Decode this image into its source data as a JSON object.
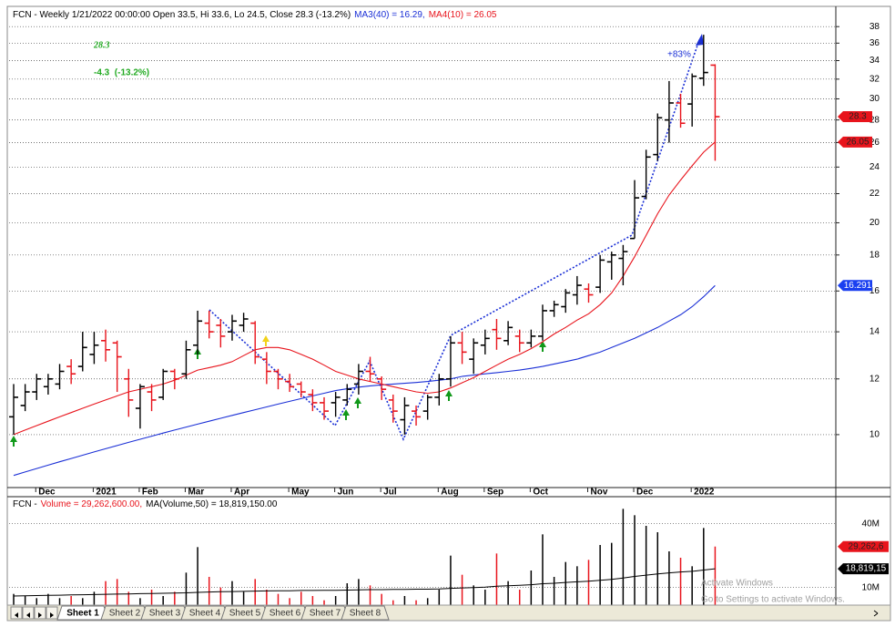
{
  "chart_data": [
    {
      "type": "ohlc",
      "title": "FCN - Weekly 1/21/2022 00:00:00 Open 33.5, Hi 33.6, Lo 24.5, Close 28.3 (-13.2%)",
      "categories": [
        null,
        null,
        "Dec",
        null,
        null,
        null,
        null,
        "2021",
        null,
        null,
        null,
        "Feb",
        null,
        null,
        null,
        "Mar",
        null,
        null,
        null,
        "Apr",
        null,
        null,
        null,
        null,
        "May",
        null,
        null,
        null,
        "Jun",
        null,
        null,
        null,
        "Jul",
        null,
        null,
        null,
        null,
        "Aug",
        null,
        null,
        null,
        "Sep",
        null,
        null,
        null,
        "Oct",
        null,
        null,
        null,
        null,
        "Nov",
        null,
        null,
        null,
        "Dec",
        null,
        null,
        null,
        null,
        "2022",
        null,
        null
      ],
      "open": [
        10.6,
        11.0,
        11.5,
        11.7,
        11.8,
        12.5,
        12.5,
        13.0,
        13.6,
        13.5,
        12.0,
        10.9,
        11.5,
        11.3,
        12.3,
        12.2,
        13.4,
        14.4,
        14.3,
        14.0,
        14.3,
        14.4,
        12.8,
        12.3,
        11.9,
        11.8,
        11.4,
        11.1,
        11.1,
        11.2,
        11.8,
        12.3,
        12.0,
        11.2,
        10.5,
        10.8,
        10.8,
        11.3,
        12.0,
        13.5,
        12.8,
        13.4,
        14.1,
        13.6,
        13.8,
        13.5,
        13.8,
        15.0,
        15.2,
        15.8,
        16.1,
        16.2,
        17.6,
        17.8,
        19.0,
        21.8,
        25.0,
        28.0,
        29.6,
        29.5,
        32.1,
        33.5
      ],
      "high": [
        11.8,
        11.8,
        12.2,
        12.2,
        12.6,
        12.8,
        14.0,
        14.0,
        14.1,
        13.6,
        12.4,
        11.8,
        11.8,
        12.4,
        12.4,
        13.6,
        15.0,
        15.0,
        14.6,
        14.8,
        14.9,
        14.5,
        13.1,
        12.4,
        12.2,
        11.9,
        11.6,
        11.3,
        11.5,
        11.8,
        12.6,
        12.9,
        12.1,
        11.4,
        11.3,
        11.0,
        11.4,
        12.2,
        13.8,
        14.0,
        13.7,
        14.1,
        14.6,
        14.5,
        14.1,
        14.1,
        15.3,
        15.5,
        16.1,
        16.8,
        16.4,
        18.0,
        18.2,
        18.6,
        23.0,
        25.4,
        28.6,
        31.8,
        30.5,
        32.6,
        37.0,
        33.6
      ],
      "low": [
        10.0,
        10.8,
        11.2,
        11.4,
        11.6,
        11.8,
        12.3,
        12.6,
        12.7,
        11.5,
        10.6,
        10.2,
        10.8,
        11.2,
        11.6,
        12.0,
        13.0,
        13.7,
        13.3,
        13.6,
        14.0,
        12.6,
        11.8,
        11.6,
        11.5,
        11.3,
        10.8,
        10.5,
        10.6,
        11.0,
        11.4,
        11.9,
        11.2,
        10.4,
        10.0,
        10.3,
        10.5,
        11.0,
        11.7,
        12.6,
        12.2,
        13.0,
        13.2,
        13.4,
        13.1,
        13.3,
        13.6,
        14.7,
        14.9,
        15.3,
        15.4,
        15.9,
        16.6,
        16.3,
        19.0,
        21.6,
        24.5,
        26.0,
        27.3,
        27.4,
        31.3,
        24.5
      ],
      "close": [
        11.3,
        11.5,
        12.0,
        12.0,
        12.3,
        12.2,
        13.3,
        13.4,
        13.2,
        12.9,
        11.2,
        11.7,
        11.2,
        12.3,
        12.0,
        13.2,
        14.5,
        14.0,
        13.8,
        14.5,
        14.6,
        12.9,
        12.3,
        12.0,
        11.7,
        11.5,
        11.1,
        10.8,
        11.3,
        11.6,
        12.3,
        12.2,
        11.6,
        10.8,
        11.0,
        10.6,
        11.3,
        12.0,
        13.5,
        13.1,
        13.5,
        13.7,
        13.7,
        14.2,
        13.5,
        13.8,
        15.0,
        15.3,
        15.9,
        16.3,
        15.8,
        17.7,
        18.0,
        18.2,
        21.7,
        24.8,
        28.2,
        29.6,
        27.7,
        32.3,
        32.7,
        28.3
      ],
      "up_color": "#000000",
      "down_color": "#e8141c",
      "series": [
        {
          "name": "MA3(40) = 16.29,",
          "color": "#1a2fd6",
          "values": [
            8.75,
            8.85,
            8.95,
            9.05,
            9.15,
            9.25,
            9.35,
            9.45,
            9.55,
            9.65,
            9.75,
            9.85,
            9.95,
            10.05,
            10.15,
            10.25,
            10.35,
            10.45,
            10.55,
            10.65,
            10.75,
            10.85,
            10.95,
            11.05,
            11.15,
            11.25,
            11.35,
            11.45,
            11.55,
            11.62,
            11.68,
            11.73,
            11.77,
            11.8,
            11.83,
            11.86,
            11.9,
            11.95,
            12.0,
            12.1,
            12.15,
            12.2,
            12.25,
            12.3,
            12.35,
            12.42,
            12.5,
            12.6,
            12.7,
            12.8,
            12.95,
            13.1,
            13.3,
            13.5,
            13.7,
            13.95,
            14.2,
            14.5,
            14.8,
            15.2,
            15.7,
            16.29
          ]
        },
        {
          "name": "MA4(10) = 26.05",
          "color": "#e8141c",
          "values": [
            10.0,
            10.15,
            10.3,
            10.45,
            10.6,
            10.75,
            10.9,
            11.05,
            11.2,
            11.35,
            11.5,
            11.6,
            11.7,
            11.8,
            11.95,
            12.15,
            12.35,
            12.45,
            12.55,
            12.7,
            12.95,
            13.2,
            13.3,
            13.3,
            13.2,
            13.0,
            12.8,
            12.55,
            12.3,
            12.15,
            12.0,
            11.9,
            11.8,
            11.7,
            11.6,
            11.5,
            11.45,
            11.5,
            11.65,
            11.85,
            12.05,
            12.3,
            12.55,
            12.8,
            13.0,
            13.25,
            13.55,
            13.9,
            14.2,
            14.55,
            14.85,
            15.3,
            15.9,
            16.8,
            17.9,
            19.2,
            20.6,
            21.9,
            23.0,
            24.1,
            25.2,
            26.05
          ]
        }
      ],
      "ylim": [
        8.46,
        40
      ],
      "log_scale": true,
      "grid": true,
      "yticks": [
        10,
        12,
        14,
        16,
        18,
        20,
        22,
        24,
        26,
        28,
        30,
        32,
        34,
        36,
        38
      ],
      "price_tags": [
        {
          "value": 28.3,
          "label": "28.3",
          "color": "#e8141c"
        },
        {
          "value": 26.05,
          "label": "26.05",
          "color": "#e8141c"
        },
        {
          "value": 16.291,
          "label": "16.291",
          "color": "#1a3ff0"
        }
      ],
      "last_label": "28.3",
      "change_label": "-4.3  (-13.2%)",
      "gain_label": "+83%"
    },
    {
      "type": "bar",
      "title": "FCN -",
      "series": [
        {
          "name": "Volume = 29,262,600.00,",
          "color": "#e8141c",
          "values": [
            7000000,
            6000000,
            5000000,
            7000000,
            5000000,
            6000000,
            5000000,
            8000000,
            13000000,
            14000000,
            8000000,
            5000000,
            9000000,
            6000000,
            8000000,
            17000000,
            29000000,
            15000000,
            10000000,
            13000000,
            8000000,
            14000000,
            9000000,
            7000000,
            5000000,
            8000000,
            6000000,
            4000000,
            6000000,
            12000000,
            14000000,
            11000000,
            7000000,
            4000000,
            6000000,
            4000000,
            5000000,
            9000000,
            25000000,
            16000000,
            11000000,
            9000000,
            26000000,
            13000000,
            9000000,
            18000000,
            35000000,
            15000000,
            22000000,
            20000000,
            23000000,
            30000000,
            31000000,
            47000000,
            44000000,
            39000000,
            36000000,
            27000000,
            24000000,
            20000000,
            38000000,
            29262600
          ]
        },
        {
          "name": "MA(Volume,50) = 18,819,150.00",
          "color": "#000000",
          "type": "line",
          "values": [
            6000000,
            6100000,
            6200000,
            6300000,
            6400000,
            6500000,
            6600000,
            6700000,
            6800000,
            6900000,
            7000000,
            7100000,
            7200000,
            7300000,
            7400000,
            7500000,
            7700000,
            7900000,
            8000000,
            8100000,
            8200000,
            8300000,
            8400000,
            8500000,
            8500000,
            8600000,
            8600000,
            8700000,
            8700000,
            8800000,
            8900000,
            9000000,
            9000000,
            9100000,
            9100000,
            9200000,
            9200000,
            9300000,
            9600000,
            9800000,
            10000000,
            10200000,
            10600000,
            10800000,
            11000000,
            11300000,
            11800000,
            12000000,
            12400000,
            12700000,
            13000000,
            13400000,
            13800000,
            14500000,
            15200000,
            15800000,
            16400000,
            16900000,
            17300000,
            17600000,
            18200000,
            18819150
          ]
        }
      ],
      "ylim": [
        0,
        51000000
      ],
      "grid": true,
      "yticks": [
        {
          "value": 10000000,
          "label": "10M"
        },
        {
          "value": 40000000,
          "label": "40M"
        }
      ],
      "tags": [
        {
          "value": 29262600,
          "label": "29,262,6",
          "color": "#e8141c"
        },
        {
          "value": 18819150,
          "label": "18,819,15",
          "color": "#000000"
        }
      ]
    }
  ],
  "tabs": [
    "Sheet 1",
    "Sheet 2",
    "Sheet 3",
    "Sheet 4",
    "Sheet 5",
    "Sheet 6",
    "Sheet 7",
    "Sheet 8"
  ],
  "watermark": {
    "title": "Activate Windows",
    "text": "Go to Settings to activate Windows."
  }
}
